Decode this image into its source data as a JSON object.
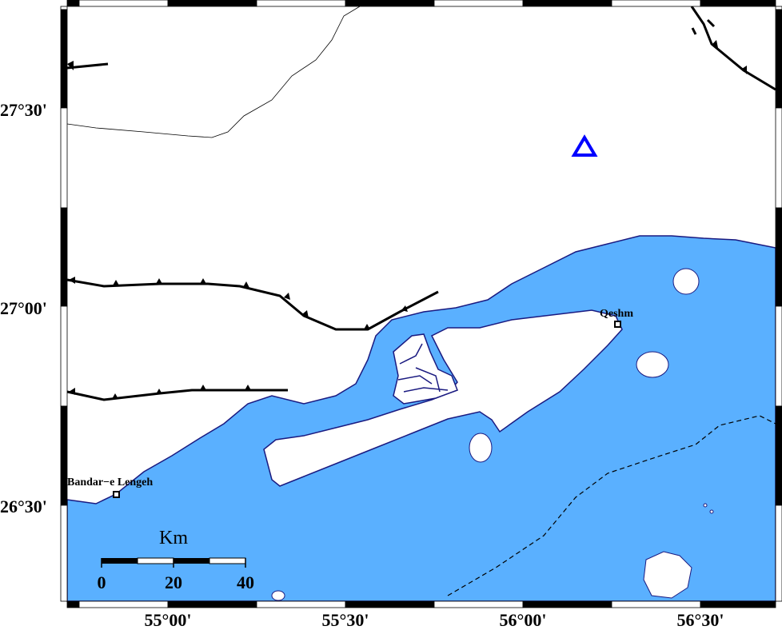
{
  "map": {
    "colors": {
      "sea": "#5ab0ff",
      "land": "#ffffff",
      "coast": "#1a1a80",
      "station": "#0000ff",
      "fault": "#000000"
    },
    "lat_labels": [
      "27°30'",
      "27°00'",
      "26°30'"
    ],
    "lon_labels": [
      "55°00'",
      "55°30'",
      "56°00'",
      "56°30'"
    ],
    "places": [
      {
        "name": "Qeshm",
        "marker": "square-icon"
      },
      {
        "name": "Bandar−e Lengeh",
        "marker": "square-icon"
      }
    ],
    "station_marker": "triangle-icon",
    "scale_bar": {
      "unit": "Km",
      "ticks": [
        "0",
        "20",
        "40"
      ]
    }
  }
}
